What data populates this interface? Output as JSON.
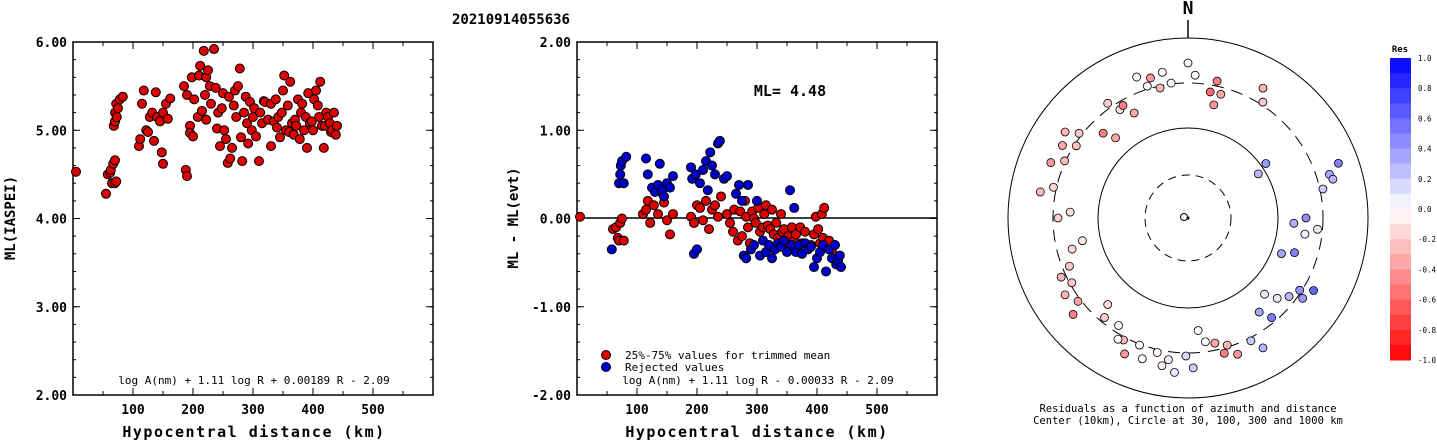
{
  "title": "20210914055636",
  "chart_data": [
    {
      "id": "ml",
      "type": "scatter",
      "xlabel": "Hypocentral distance (km)",
      "ylabel": "ML(IASPEI)",
      "xlim": [
        0,
        600
      ],
      "ylim": [
        2.0,
        6.0
      ],
      "xticks": [
        100,
        200,
        300,
        400,
        500
      ],
      "yticks": [
        2.0,
        3.0,
        4.0,
        5.0,
        6.0
      ],
      "ytick_labels": [
        "2.00",
        "3.00",
        "4.00",
        "5.00",
        "6.00"
      ],
      "formula": "log A(nm) + 1.11 log R + 0.00189 R - 2.09",
      "marker_color": "#dd0000",
      "points": [
        [
          5,
          4.53
        ],
        [
          55,
          4.28
        ],
        [
          58,
          4.5
        ],
        [
          62,
          4.52
        ],
        [
          63,
          4.55
        ],
        [
          65,
          4.4
        ],
        [
          67,
          4.62
        ],
        [
          70,
          4.66
        ],
        [
          70,
          4.4
        ],
        [
          72,
          4.42
        ],
        [
          68,
          5.05
        ],
        [
          70,
          5.1
        ],
        [
          70,
          5.2
        ],
        [
          72,
          5.3
        ],
        [
          73,
          5.15
        ],
        [
          75,
          5.25
        ],
        [
          78,
          5.35
        ],
        [
          83,
          5.38
        ],
        [
          110,
          4.82
        ],
        [
          112,
          4.9
        ],
        [
          115,
          5.3
        ],
        [
          118,
          5.45
        ],
        [
          122,
          5.0
        ],
        [
          125,
          4.98
        ],
        [
          128,
          5.15
        ],
        [
          132,
          5.2
        ],
        [
          135,
          4.88
        ],
        [
          138,
          5.43
        ],
        [
          140,
          5.15
        ],
        [
          145,
          5.1
        ],
        [
          148,
          4.75
        ],
        [
          150,
          4.62
        ],
        [
          150,
          5.2
        ],
        [
          155,
          5.3
        ],
        [
          158,
          5.13
        ],
        [
          162,
          5.36
        ],
        [
          185,
          5.5
        ],
        [
          188,
          4.55
        ],
        [
          190,
          4.48
        ],
        [
          190,
          5.4
        ],
        [
          195,
          5.05
        ],
        [
          195,
          4.97
        ],
        [
          198,
          5.6
        ],
        [
          200,
          4.93
        ],
        [
          202,
          5.35
        ],
        [
          208,
          5.15
        ],
        [
          210,
          5.62
        ],
        [
          212,
          5.73
        ],
        [
          215,
          5.22
        ],
        [
          218,
          5.9
        ],
        [
          220,
          5.4
        ],
        [
          222,
          5.6
        ],
        [
          222,
          5.12
        ],
        [
          225,
          5.68
        ],
        [
          228,
          5.5
        ],
        [
          230,
          5.3
        ],
        [
          235,
          5.92
        ],
        [
          238,
          5.48
        ],
        [
          240,
          5.02
        ],
        [
          242,
          5.2
        ],
        [
          245,
          4.82
        ],
        [
          248,
          5.25
        ],
        [
          250,
          5.42
        ],
        [
          252,
          5.0
        ],
        [
          255,
          4.9
        ],
        [
          258,
          4.63
        ],
        [
          260,
          5.38
        ],
        [
          262,
          4.68
        ],
        [
          265,
          4.8
        ],
        [
          268,
          5.28
        ],
        [
          270,
          5.45
        ],
        [
          272,
          5.15
        ],
        [
          275,
          5.5
        ],
        [
          278,
          5.7
        ],
        [
          280,
          4.92
        ],
        [
          282,
          4.65
        ],
        [
          285,
          5.2
        ],
        [
          288,
          5.38
        ],
        [
          290,
          5.08
        ],
        [
          292,
          4.85
        ],
        [
          295,
          5.32
        ],
        [
          298,
          5.0
        ],
        [
          300,
          5.15
        ],
        [
          302,
          5.25
        ],
        [
          305,
          4.93
        ],
        [
          310,
          4.65
        ],
        [
          312,
          5.2
        ],
        [
          315,
          5.08
        ],
        [
          318,
          5.33
        ],
        [
          320,
          5.32
        ],
        [
          325,
          5.12
        ],
        [
          330,
          4.82
        ],
        [
          330,
          5.3
        ],
        [
          335,
          5.1
        ],
        [
          338,
          5.35
        ],
        [
          340,
          5.03
        ],
        [
          342,
          5.15
        ],
        [
          345,
          4.92
        ],
        [
          348,
          5.2
        ],
        [
          350,
          5.45
        ],
        [
          352,
          5.62
        ],
        [
          355,
          5.0
        ],
        [
          358,
          5.28
        ],
        [
          360,
          4.98
        ],
        [
          362,
          5.55
        ],
        [
          365,
          5.08
        ],
        [
          368,
          4.95
        ],
        [
          370,
          5.12
        ],
        [
          372,
          5.05
        ],
        [
          375,
          5.35
        ],
        [
          378,
          4.9
        ],
        [
          380,
          5.2
        ],
        [
          382,
          5.3
        ],
        [
          385,
          5.0
        ],
        [
          388,
          5.15
        ],
        [
          390,
          4.8
        ],
        [
          392,
          5.42
        ],
        [
          395,
          5.08
        ],
        [
          398,
          5.1
        ],
        [
          400,
          5.0
        ],
        [
          402,
          5.35
        ],
        [
          405,
          5.45
        ],
        [
          408,
          5.28
        ],
        [
          410,
          5.15
        ],
        [
          412,
          5.55
        ],
        [
          415,
          5.05
        ],
        [
          418,
          4.8
        ],
        [
          420,
          5.05
        ],
        [
          422,
          5.2
        ],
        [
          425,
          5.15
        ],
        [
          428,
          5.08
        ],
        [
          430,
          4.98
        ],
        [
          432,
          5.0
        ],
        [
          435,
          5.2
        ],
        [
          438,
          4.95
        ],
        [
          440,
          5.05
        ]
      ]
    },
    {
      "id": "residual",
      "type": "scatter",
      "xlabel": "Hypocentral distance (km)",
      "ylabel": "ML - ML(evt)",
      "xlim": [
        0,
        600
      ],
      "ylim": [
        -2.0,
        2.0
      ],
      "xticks": [
        100,
        200,
        300,
        400,
        500
      ],
      "yticks": [
        -2.0,
        -1.0,
        0.0,
        1.0,
        2.0
      ],
      "ytick_labels": [
        "-2.00",
        "-1.00",
        "0.00",
        "1.00",
        "2.00"
      ],
      "annotation": "ML= 4.48",
      "legend": [
        "25%-75% values for trimmed mean",
        "Rejected values"
      ],
      "legend_colors": [
        "#dd0000",
        "#0000cc"
      ],
      "formula": "log A(nm) + 1.11 log R - 0.00033 R - 2.09",
      "accepted": [
        [
          5,
          0.02
        ],
        [
          60,
          -0.12
        ],
        [
          65,
          -0.1
        ],
        [
          68,
          -0.22
        ],
        [
          70,
          -0.25
        ],
        [
          72,
          -0.05
        ],
        [
          75,
          0.0
        ],
        [
          78,
          -0.25
        ],
        [
          110,
          0.05
        ],
        [
          115,
          0.1
        ],
        [
          118,
          0.2
        ],
        [
          122,
          -0.05
        ],
        [
          128,
          0.15
        ],
        [
          135,
          0.05
        ],
        [
          140,
          0.3
        ],
        [
          145,
          0.18
        ],
        [
          150,
          -0.02
        ],
        [
          155,
          -0.18
        ],
        [
          160,
          0.05
        ],
        [
          190,
          0.02
        ],
        [
          195,
          -0.05
        ],
        [
          200,
          0.15
        ],
        [
          205,
          0.12
        ],
        [
          210,
          -0.02
        ],
        [
          215,
          0.2
        ],
        [
          220,
          -0.12
        ],
        [
          225,
          0.1
        ],
        [
          230,
          0.15
        ],
        [
          235,
          0.02
        ],
        [
          240,
          0.25
        ],
        [
          250,
          0.05
        ],
        [
          255,
          -0.05
        ],
        [
          260,
          -0.15
        ],
        [
          262,
          0.1
        ],
        [
          268,
          -0.25
        ],
        [
          272,
          0.08
        ],
        [
          275,
          -0.2
        ],
        [
          280,
          0.2
        ],
        [
          282,
          0.02
        ],
        [
          285,
          -0.1
        ],
        [
          288,
          -0.28
        ],
        [
          292,
          0.08
        ],
        [
          295,
          0.0
        ],
        [
          298,
          -0.05
        ],
        [
          302,
          0.12
        ],
        [
          305,
          -0.15
        ],
        [
          310,
          -0.1
        ],
        [
          312,
          0.05
        ],
        [
          315,
          0.15
        ],
        [
          318,
          -0.08
        ],
        [
          322,
          -0.12
        ],
        [
          325,
          0.1
        ],
        [
          328,
          -0.18
        ],
        [
          332,
          -0.05
        ],
        [
          335,
          -0.22
        ],
        [
          340,
          0.05
        ],
        [
          342,
          -0.15
        ],
        [
          345,
          -0.12
        ],
        [
          348,
          -0.28
        ],
        [
          352,
          -0.2
        ],
        [
          355,
          -0.35
        ],
        [
          358,
          -0.1
        ],
        [
          362,
          -0.25
        ],
        [
          365,
          -0.18
        ],
        [
          368,
          -0.32
        ],
        [
          372,
          -0.1
        ],
        [
          375,
          -0.28
        ],
        [
          380,
          -0.15
        ],
        [
          385,
          -0.32
        ],
        [
          390,
          -0.3
        ],
        [
          395,
          -0.18
        ],
        [
          398,
          0.02
        ],
        [
          402,
          -0.12
        ],
        [
          405,
          -0.28
        ],
        [
          408,
          0.05
        ],
        [
          410,
          -0.22
        ],
        [
          412,
          0.12
        ],
        [
          415,
          -0.3
        ],
        [
          420,
          -0.25
        ],
        [
          425,
          -0.35
        ]
      ],
      "rejected": [
        [
          58,
          -0.35
        ],
        [
          70,
          0.4
        ],
        [
          72,
          0.5
        ],
        [
          73,
          0.6
        ],
        [
          75,
          0.65
        ],
        [
          78,
          0.4
        ],
        [
          82,
          0.7
        ],
        [
          115,
          0.68
        ],
        [
          118,
          0.5
        ],
        [
          125,
          0.35
        ],
        [
          130,
          0.3
        ],
        [
          135,
          0.38
        ],
        [
          138,
          0.62
        ],
        [
          142,
          0.32
        ],
        [
          145,
          0.25
        ],
        [
          150,
          0.4
        ],
        [
          155,
          0.35
        ],
        [
          160,
          0.48
        ],
        [
          190,
          0.58
        ],
        [
          192,
          0.45
        ],
        [
          195,
          -0.4
        ],
        [
          198,
          0.5
        ],
        [
          200,
          -0.35
        ],
        [
          205,
          0.4
        ],
        [
          210,
          0.55
        ],
        [
          215,
          0.65
        ],
        [
          218,
          0.32
        ],
        [
          222,
          0.75
        ],
        [
          225,
          0.6
        ],
        [
          230,
          0.5
        ],
        [
          235,
          0.85
        ],
        [
          238,
          0.88
        ],
        [
          245,
          0.45
        ],
        [
          250,
          0.48
        ],
        [
          265,
          0.28
        ],
        [
          270,
          0.38
        ],
        [
          275,
          0.2
        ],
        [
          278,
          -0.42
        ],
        [
          282,
          -0.45
        ],
        [
          285,
          0.38
        ],
        [
          290,
          -0.35
        ],
        [
          295,
          -0.3
        ],
        [
          300,
          0.2
        ],
        [
          305,
          -0.42
        ],
        [
          310,
          -0.25
        ],
        [
          315,
          -0.38
        ],
        [
          320,
          -0.3
        ],
        [
          325,
          -0.45
        ],
        [
          330,
          -0.35
        ],
        [
          335,
          -0.28
        ],
        [
          340,
          -0.32
        ],
        [
          345,
          -0.25
        ],
        [
          350,
          -0.38
        ],
        [
          355,
          0.32
        ],
        [
          358,
          -0.3
        ],
        [
          362,
          0.12
        ],
        [
          365,
          -0.38
        ],
        [
          370,
          -0.3
        ],
        [
          375,
          -0.4
        ],
        [
          380,
          -0.28
        ],
        [
          385,
          -0.35
        ],
        [
          390,
          -0.32
        ],
        [
          395,
          -0.55
        ],
        [
          400,
          -0.45
        ],
        [
          405,
          -0.38
        ],
        [
          410,
          -0.3
        ],
        [
          415,
          -0.6
        ],
        [
          420,
          -0.35
        ],
        [
          425,
          -0.45
        ],
        [
          430,
          -0.3
        ],
        [
          432,
          -0.52
        ],
        [
          435,
          -0.48
        ],
        [
          438,
          -0.42
        ],
        [
          440,
          -0.55
        ]
      ]
    },
    {
      "id": "azimuth",
      "type": "scatter",
      "north_label": "N",
      "caption": [
        "Residuals as a function of azimuth and distance",
        "Center (10km), Circle at 30, 100, 300 and 1000 km"
      ],
      "colorbar_title": "Res",
      "colorbar_labels": [
        "1.0",
        "0.8",
        "0.6",
        "0.4",
        "0.2",
        "0.0",
        "-0.2",
        "-0.4",
        "-0.6",
        "-0.8",
        "-1.0"
      ],
      "points_azimuth_deg_residual": [
        [
          350,
          0.02
        ],
        [
          0,
          -0.05
        ],
        [
          10,
          -0.6
        ],
        [
          12,
          -0.5
        ],
        [
          30,
          -0.3
        ],
        [
          55,
          0.4
        ],
        [
          70,
          0.5
        ],
        [
          75,
          0.3
        ],
        [
          90,
          0.45
        ],
        [
          95,
          0.1
        ],
        [
          108,
          0.5
        ],
        [
          120,
          0.6
        ],
        [
          125,
          0.4
        ],
        [
          132,
          0.1
        ],
        [
          140,
          0.5
        ],
        [
          150,
          0.3
        ],
        [
          160,
          -0.4
        ],
        [
          165,
          -0.5
        ],
        [
          172,
          0.0
        ],
        [
          178,
          0.2
        ],
        [
          185,
          0.1
        ],
        [
          190,
          -0.05
        ],
        [
          198,
          0.0
        ],
        [
          205,
          -0.4
        ],
        [
          210,
          0.0
        ],
        [
          220,
          -0.2
        ],
        [
          230,
          -0.5
        ],
        [
          238,
          -0.3
        ],
        [
          245,
          -0.3
        ],
        [
          255,
          -0.15
        ],
        [
          270,
          -0.2
        ],
        [
          280,
          -0.25
        ],
        [
          292,
          -0.4
        ],
        [
          300,
          -0.35
        ],
        [
          305,
          -0.3
        ],
        [
          315,
          -0.5
        ],
        [
          325,
          -0.2
        ],
        [
          330,
          -0.5
        ],
        [
          340,
          0.0
        ],
        [
          345,
          -0.4
        ]
      ]
    }
  ]
}
